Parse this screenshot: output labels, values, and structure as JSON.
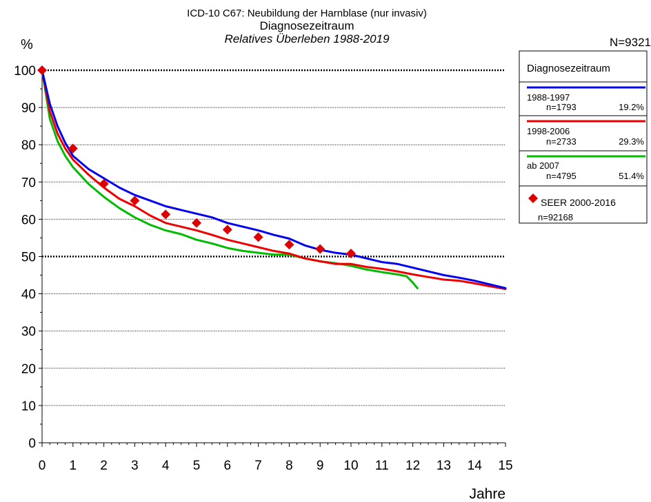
{
  "chart_data": {
    "type": "line",
    "title": "ICD-10 C67: Neubildung der Harnblase (nur invasiv)",
    "subtitle": "Diagnosezeitraum",
    "subtitle2": "Relatives Überleben 1988-2019",
    "ylabel": "%",
    "xlabel": "Jahre",
    "total_n": "N=9321",
    "xlim": [
      0,
      15
    ],
    "ylim": [
      0,
      100
    ],
    "xticks": [
      0,
      1,
      2,
      3,
      4,
      5,
      6,
      7,
      8,
      9,
      10,
      11,
      12,
      13,
      14,
      15
    ],
    "yticks": [
      0,
      10,
      20,
      30,
      40,
      50,
      60,
      70,
      80,
      90,
      100
    ],
    "grid": true,
    "legend_position": "right",
    "legend_title": "Diagnosezeitraum",
    "colors": {
      "s1": "#0000ee",
      "s2": "#ee0000",
      "s3": "#00bb00",
      "seer": "#dd0000"
    },
    "series": [
      {
        "name": "1988-1997",
        "n": "n=1793",
        "pct": "19.2%",
        "color": "#0000ee",
        "x": [
          0,
          0.25,
          0.5,
          0.75,
          1,
          1.5,
          2,
          2.5,
          3,
          3.5,
          4,
          4.5,
          5,
          5.5,
          6,
          6.5,
          7,
          7.5,
          8,
          8.5,
          9,
          9.5,
          10,
          10.5,
          11,
          11.5,
          12,
          12.5,
          13,
          13.5,
          14,
          14.5,
          15
        ],
        "y": [
          100,
          91,
          85,
          80.5,
          77,
          73.5,
          71,
          68.5,
          66.5,
          65,
          63.5,
          62.5,
          61.5,
          60.5,
          59,
          58,
          57,
          55.8,
          54.8,
          53,
          51.8,
          51,
          50.5,
          49.5,
          48.5,
          48,
          47,
          46,
          45,
          44.3,
          43.5,
          42.5,
          41.5
        ]
      },
      {
        "name": "1998-2006",
        "n": "n=2733",
        "pct": "29.3%",
        "color": "#ee0000",
        "x": [
          0,
          0.25,
          0.5,
          0.75,
          1,
          1.5,
          2,
          2.5,
          3,
          3.5,
          4,
          4.5,
          5,
          5.5,
          6,
          6.5,
          7,
          7.5,
          8,
          8.5,
          9,
          9.5,
          10,
          10.5,
          11,
          11.5,
          12,
          12.5,
          13,
          13.5,
          14,
          14.5,
          15
        ],
        "y": [
          100,
          89,
          83,
          79,
          76,
          72,
          68.5,
          65.5,
          63.5,
          61,
          59,
          58,
          57,
          55.8,
          54.5,
          53.5,
          52.5,
          51.5,
          50.8,
          49.5,
          48.7,
          48,
          48,
          47.2,
          46.7,
          46,
          45.2,
          44.5,
          43.8,
          43.5,
          42.8,
          42,
          41.3
        ]
      },
      {
        "name": "ab 2007",
        "n": "n=4795",
        "pct": "51.4%",
        "color": "#00bb00",
        "x": [
          0,
          0.25,
          0.5,
          0.75,
          1,
          1.5,
          2,
          2.5,
          3,
          3.5,
          4,
          4.5,
          5,
          5.5,
          6,
          6.5,
          7,
          7.5,
          8,
          8.5,
          9,
          9.5,
          10,
          10.5,
          11,
          11.5,
          11.8,
          12,
          12.15
        ],
        "y": [
          100,
          87,
          81,
          77,
          74,
          69.5,
          66,
          63,
          60.5,
          58.5,
          57,
          56,
          54.5,
          53.5,
          52.3,
          51.5,
          51,
          50.5,
          50.5,
          49.5,
          48.7,
          48.2,
          47.5,
          46.5,
          45.8,
          45.2,
          44.7,
          43,
          41.5
        ]
      }
    ],
    "seer": {
      "name": "SEER 2000-2016",
      "n": "n=92168",
      "color": "#dd0000",
      "x": [
        0,
        1,
        2,
        3,
        4,
        5,
        6,
        7,
        8,
        9,
        10
      ],
      "y": [
        100,
        79,
        69.5,
        65,
        61.3,
        59,
        57.2,
        55.2,
        53.2,
        52,
        50.8
      ]
    }
  }
}
